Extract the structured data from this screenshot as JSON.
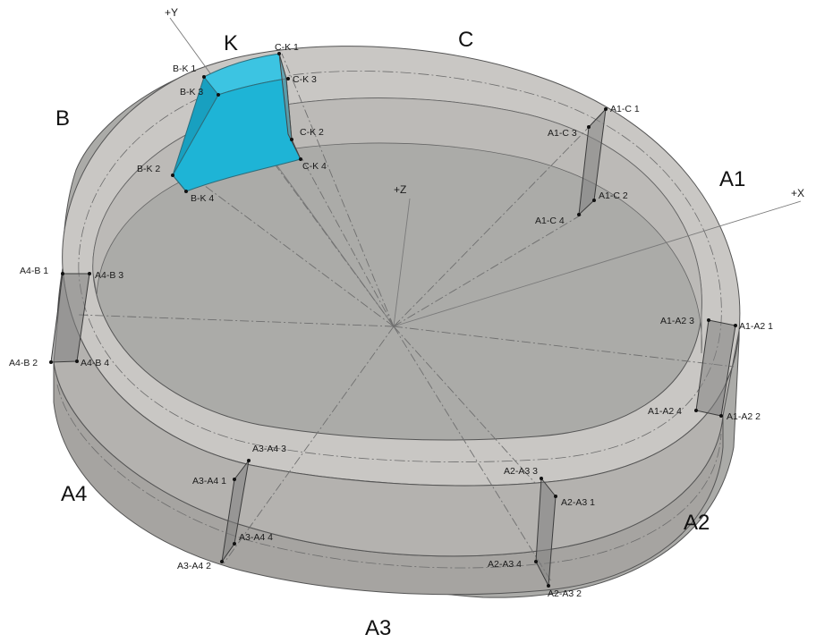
{
  "axes": {
    "x": "+X",
    "y": "+Y",
    "z": "+Z"
  },
  "colors": {
    "ring_top": "#c8c6c3",
    "ring_outer": "#aba9a6",
    "ring_inner": "#bdbbb8",
    "joint": "#7f7f7f",
    "segment_k": "#1eb4d6",
    "edge": "#4a4a4a"
  },
  "segments": {
    "K": "K",
    "C": "C",
    "B": "B",
    "A1": "A1",
    "A4": "A4",
    "A2": "A2",
    "A3": "A3"
  },
  "points": {
    "ck1": "C-K 1",
    "ck3": "C-K 3",
    "ck2": "C-K 2",
    "ck4": "C-K 4",
    "bk1": "B-K 1",
    "bk3": "B-K 3",
    "bk2": "B-K 2",
    "bk4": "B-K 4",
    "a1c1": "A1-C 1",
    "a1c3": "A1-C 3",
    "a1c2": "A1-C 2",
    "a1c4": "A1-C 4",
    "a4b1": "A4-B 1",
    "a4b3": "A4-B 3",
    "a4b2": "A4-B 2",
    "a4b4": "A4-B 4",
    "a1a23": "A1-A2 3",
    "a1a21": "A1-A2 1",
    "a1a24": "A1-A2 4",
    "a1a22": "A1-A2 2",
    "a3a43": "A3-A4 3",
    "a3a41": "A3-A4 1",
    "a3a44": "A3-A4 4",
    "a3a42": "A3-A4 2",
    "a2a33": "A2-A3 3",
    "a2a31": "A2-A3 1",
    "a2a34": "A2-A3 4",
    "a2a32": "A2-A3 2"
  }
}
